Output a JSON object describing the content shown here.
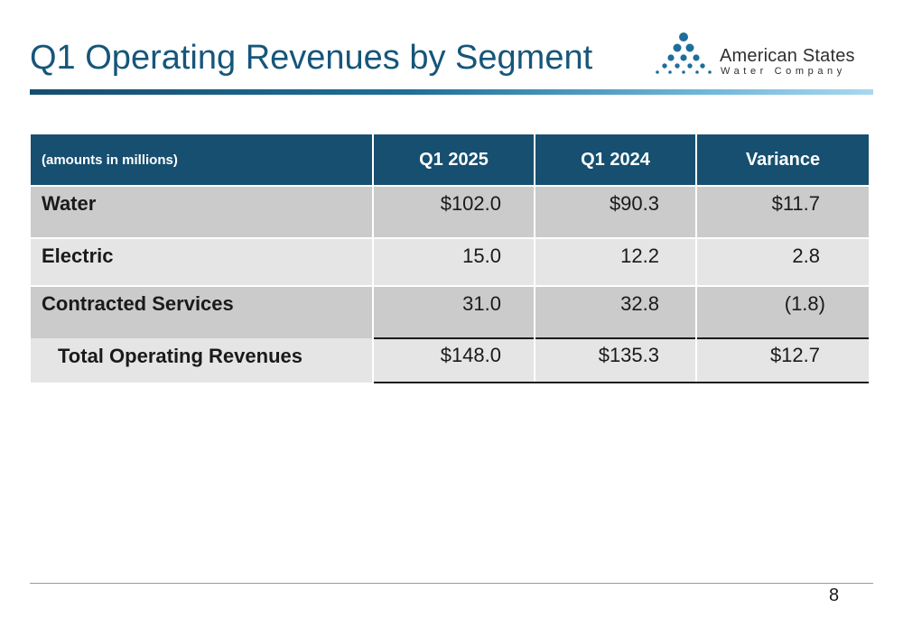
{
  "slide": {
    "title": "Q1 Operating Revenues by Segment",
    "page_number": "8"
  },
  "logo": {
    "name": "American States",
    "sub": "Water Company",
    "icon": "droplet-triangle-icon",
    "color": "#1d6f99"
  },
  "colors": {
    "title": "#16567a",
    "header_bg": "#164f70",
    "row_dark": "#cbcbcb",
    "row_light": "#e5e5e5"
  },
  "table": {
    "headers": [
      "(amounts in millions)",
      "Q1 2025",
      "Q1 2024",
      "Variance"
    ],
    "rows": [
      {
        "label": "Water",
        "q1_2025": "$102.0",
        "q1_2024": "$90.3",
        "variance": "$11.7"
      },
      {
        "label": "Electric",
        "q1_2025": "15.0",
        "q1_2024": "12.2",
        "variance": "2.8"
      },
      {
        "label": "Contracted Services",
        "q1_2025": "31.0",
        "q1_2024": "32.8",
        "variance": "(1.8)"
      },
      {
        "label": "Total Operating Revenues",
        "q1_2025": "$148.0",
        "q1_2024": "$135.3",
        "variance": "$12.7"
      }
    ]
  }
}
